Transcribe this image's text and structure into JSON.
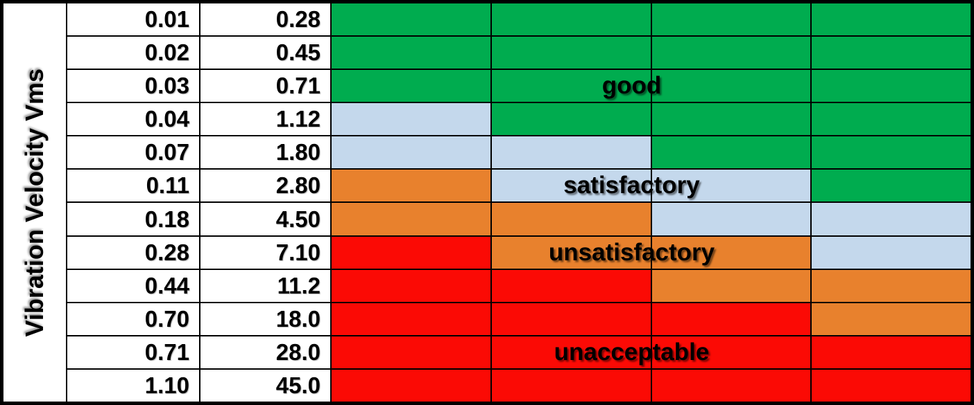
{
  "chart_data": {
    "type": "heatmap",
    "title": "",
    "ylabel": "Vibration Velocity Vms",
    "legend_position": "inline-overlay",
    "grid": "on",
    "zone_colors": {
      "good": "#00AC4F",
      "satisfactory": "#C4D8EC",
      "unsatisfactory": "#E8812D",
      "unacceptable": "#FB0A05"
    },
    "zone_labels": [
      {
        "text": "good",
        "row": 3
      },
      {
        "text": "satisfactory",
        "row": 6
      },
      {
        "text": "unsatisfactory",
        "row": 8
      },
      {
        "text": "unacceptable",
        "row": 11
      }
    ],
    "rows": [
      {
        "v1": "0.01",
        "v2": "0.28",
        "zones": [
          "good",
          "good",
          "good",
          "good"
        ]
      },
      {
        "v1": "0.02",
        "v2": "0.45",
        "zones": [
          "good",
          "good",
          "good",
          "good"
        ]
      },
      {
        "v1": "0.03",
        "v2": "0.71",
        "zones": [
          "good",
          "good",
          "good",
          "good"
        ]
      },
      {
        "v1": "0.04",
        "v2": "1.12",
        "zones": [
          "satisfactory",
          "good",
          "good",
          "good"
        ]
      },
      {
        "v1": "0.07",
        "v2": "1.80",
        "zones": [
          "satisfactory",
          "satisfactory",
          "good",
          "good"
        ]
      },
      {
        "v1": "0.11",
        "v2": "2.80",
        "zones": [
          "unsatisfactory",
          "satisfactory",
          "satisfactory",
          "good"
        ]
      },
      {
        "v1": "0.18",
        "v2": "4.50",
        "zones": [
          "unsatisfactory",
          "unsatisfactory",
          "satisfactory",
          "satisfactory"
        ]
      },
      {
        "v1": "0.28",
        "v2": "7.10",
        "zones": [
          "unacceptable",
          "unsatisfactory",
          "unsatisfactory",
          "satisfactory"
        ]
      },
      {
        "v1": "0.44",
        "v2": "11.2",
        "zones": [
          "unacceptable",
          "unacceptable",
          "unsatisfactory",
          "unsatisfactory"
        ]
      },
      {
        "v1": "0.70",
        "v2": "18.0",
        "zones": [
          "unacceptable",
          "unacceptable",
          "unacceptable",
          "unsatisfactory"
        ]
      },
      {
        "v1": "0.71",
        "v2": "28.0",
        "zones": [
          "unacceptable",
          "unacceptable",
          "unacceptable",
          "unacceptable"
        ]
      },
      {
        "v1": "1.10",
        "v2": "45.0",
        "zones": [
          "unacceptable",
          "unacceptable",
          "unacceptable",
          "unacceptable"
        ]
      }
    ]
  }
}
